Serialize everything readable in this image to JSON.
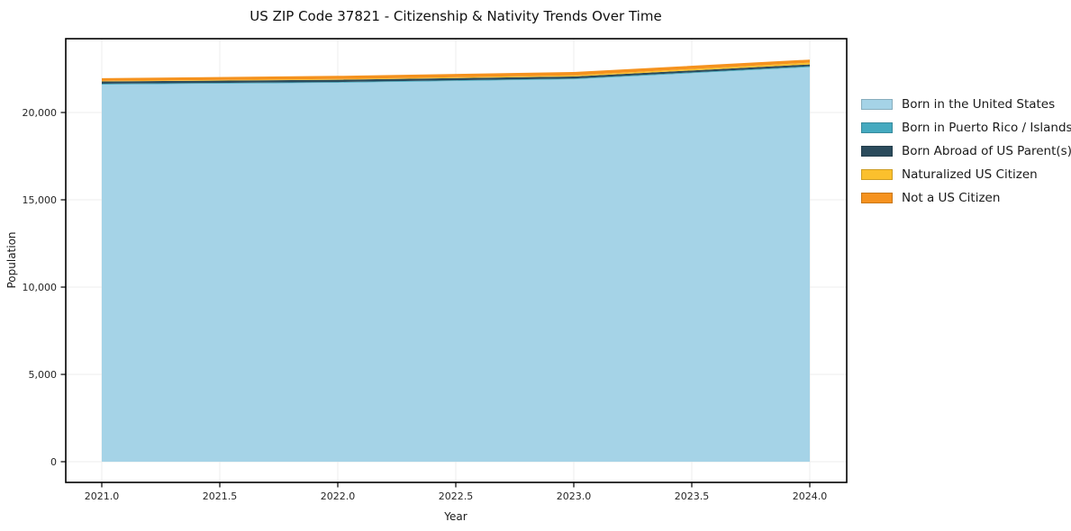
{
  "title": "US ZIP Code 37821 - Citizenship & Nativity Trends Over Time",
  "chart_data": {
    "type": "area",
    "stacked": true,
    "title": "US ZIP Code 37821 - Citizenship & Nativity Trends Over Time",
    "xlabel": "Year",
    "ylabel": "Population",
    "x": [
      2021,
      2022,
      2023,
      2024
    ],
    "series": [
      {
        "name": "Born in the United States",
        "color": "#A5D3E7",
        "values": [
          21600,
          21700,
          21900,
          22600
        ]
      },
      {
        "name": "Born in Puerto Rico / Islands",
        "color": "#44A9BF",
        "values": [
          50,
          50,
          50,
          50
        ]
      },
      {
        "name": "Born Abroad of US Parent(s)",
        "color": "#2B4B5C",
        "values": [
          130,
          125,
          110,
          100
        ]
      },
      {
        "name": "Naturalized US Citizen",
        "color": "#FBC02D",
        "values": [
          30,
          40,
          70,
          105
        ]
      },
      {
        "name": "Not a US Citizen",
        "color": "#F5921E",
        "values": [
          155,
          185,
          190,
          175
        ]
      }
    ],
    "x_ticks": [
      {
        "value": 2021.0,
        "label": "2021.0"
      },
      {
        "value": 2021.5,
        "label": "2021.5"
      },
      {
        "value": 2022.0,
        "label": "2022.0"
      },
      {
        "value": 2022.5,
        "label": "2022.5"
      },
      {
        "value": 2023.0,
        "label": "2023.0"
      },
      {
        "value": 2023.5,
        "label": "2023.5"
      },
      {
        "value": 2024.0,
        "label": "2024.0"
      }
    ],
    "y_ticks": [
      {
        "value": 0,
        "label": "0"
      },
      {
        "value": 5000,
        "label": "5,000"
      },
      {
        "value": 10000,
        "label": "10,000"
      },
      {
        "value": 15000,
        "label": "15,000"
      },
      {
        "value": 20000,
        "label": "20,000"
      }
    ],
    "xlim": [
      2020.85,
      2024.15
    ],
    "ylim": [
      -1150,
      24200
    ],
    "grid": true,
    "legend_position": "right",
    "grid_color": "#ececec",
    "spine_color": "#000000"
  }
}
